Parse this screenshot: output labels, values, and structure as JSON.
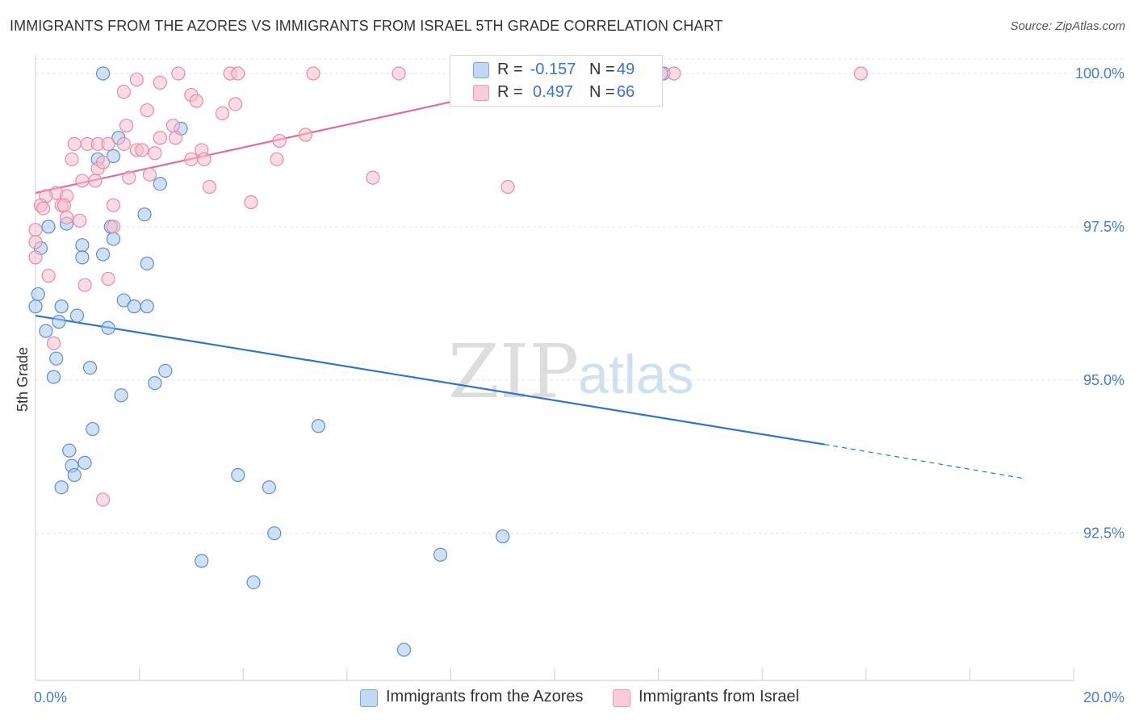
{
  "title": "IMMIGRANTS FROM THE AZORES VS IMMIGRANTS FROM ISRAEL 5TH GRADE CORRELATION CHART",
  "source": "Source: ZipAtlas.com",
  "watermark": {
    "zip": "ZIP",
    "atlas": "atlas"
  },
  "colors": {
    "blue": "#a9c6ee",
    "blue_stroke": "#5b8fd6",
    "blue_line": "#2f74d0",
    "pink": "#f7bfd0",
    "pink_stroke": "#e88aa7",
    "pink_line": "#e46c95",
    "value_text": "#3d73cf",
    "grid": "#e6e6e6"
  },
  "legend": {
    "r_label": "R =",
    "n_label": "N =",
    "rows": [
      {
        "series": "Immigrants from the Azores",
        "r": "-0.157",
        "n": "49",
        "color": "blue"
      },
      {
        "series": "Immigrants from Israel",
        "r": "0.497",
        "n": "66",
        "color": "pink"
      }
    ]
  },
  "chart_data": {
    "type": "scatter",
    "title": "IMMIGRANTS FROM THE AZORES VS IMMIGRANTS FROM ISRAEL 5TH GRADE CORRELATION CHART",
    "xlabel": "",
    "ylabel": "5th Grade",
    "xlim": [
      0,
      20
    ],
    "ylim": [
      90.1,
      100.25
    ],
    "x_tick_labels": [
      "0.0%",
      "20.0%"
    ],
    "y_ticks": [
      92.5,
      95.0,
      97.5,
      100.0
    ],
    "y_tick_labels": [
      "92.5%",
      "95.0%",
      "97.5%",
      "100.0%"
    ],
    "grid": true,
    "legend_position": "top-center",
    "series": [
      {
        "name": "Immigrants from the Azores",
        "color": "blue",
        "r": -0.157,
        "n": 49,
        "trend": {
          "x0": 0.0,
          "y0": 96.05,
          "x1": 15.2,
          "y1": 93.95,
          "dash_to_x": 19.0,
          "dash_to_y": 93.4
        },
        "points": [
          [
            1.3,
            100.0
          ],
          [
            11.0,
            100.0
          ],
          [
            12.1,
            100.0
          ],
          [
            2.8,
            99.1
          ],
          [
            1.6,
            98.95
          ],
          [
            1.2,
            98.6
          ],
          [
            1.5,
            98.65
          ],
          [
            2.4,
            98.2
          ],
          [
            2.1,
            97.7
          ],
          [
            0.6,
            97.55
          ],
          [
            0.25,
            97.5
          ],
          [
            1.45,
            97.5
          ],
          [
            1.5,
            97.3
          ],
          [
            0.9,
            97.2
          ],
          [
            0.1,
            97.15
          ],
          [
            0.9,
            97.0
          ],
          [
            1.3,
            97.05
          ],
          [
            2.15,
            96.9
          ],
          [
            0.05,
            96.4
          ],
          [
            1.7,
            96.3
          ],
          [
            0.0,
            96.2
          ],
          [
            0.5,
            96.2
          ],
          [
            1.9,
            96.2
          ],
          [
            2.15,
            96.2
          ],
          [
            0.8,
            96.05
          ],
          [
            0.45,
            95.95
          ],
          [
            1.4,
            95.85
          ],
          [
            0.2,
            95.8
          ],
          [
            0.4,
            95.35
          ],
          [
            1.05,
            95.2
          ],
          [
            2.5,
            95.15
          ],
          [
            0.35,
            95.05
          ],
          [
            2.3,
            94.95
          ],
          [
            1.65,
            94.75
          ],
          [
            5.45,
            94.25
          ],
          [
            1.1,
            94.2
          ],
          [
            0.65,
            93.85
          ],
          [
            0.7,
            93.6
          ],
          [
            0.95,
            93.65
          ],
          [
            0.75,
            93.45
          ],
          [
            3.9,
            93.45
          ],
          [
            0.5,
            93.25
          ],
          [
            4.5,
            93.25
          ],
          [
            4.6,
            92.5
          ],
          [
            9.0,
            92.45
          ],
          [
            7.8,
            92.15
          ],
          [
            3.2,
            92.05
          ],
          [
            4.2,
            91.7
          ],
          [
            7.1,
            90.6
          ]
        ]
      },
      {
        "name": "Immigrants from Israel",
        "color": "pink",
        "r": 0.497,
        "n": 66,
        "trend": {
          "x0": 0.0,
          "y0": 98.05,
          "x1": 10.5,
          "y1": 100.0
        },
        "points": [
          [
            2.75,
            100.0
          ],
          [
            3.75,
            100.0
          ],
          [
            3.9,
            100.0
          ],
          [
            5.35,
            100.0
          ],
          [
            7.0,
            100.0
          ],
          [
            9.1,
            100.0
          ],
          [
            11.5,
            100.0
          ],
          [
            12.05,
            100.0
          ],
          [
            12.3,
            100.0
          ],
          [
            15.9,
            100.0
          ],
          [
            1.95,
            99.9
          ],
          [
            2.4,
            99.85
          ],
          [
            1.7,
            99.7
          ],
          [
            3.0,
            99.65
          ],
          [
            3.1,
            99.55
          ],
          [
            3.85,
            99.5
          ],
          [
            2.15,
            99.4
          ],
          [
            3.6,
            99.35
          ],
          [
            1.75,
            99.15
          ],
          [
            2.65,
            99.15
          ],
          [
            5.2,
            99.0
          ],
          [
            2.4,
            98.95
          ],
          [
            2.7,
            98.95
          ],
          [
            4.7,
            98.9
          ],
          [
            0.75,
            98.85
          ],
          [
            1.0,
            98.85
          ],
          [
            1.2,
            98.85
          ],
          [
            1.4,
            98.85
          ],
          [
            1.7,
            98.85
          ],
          [
            1.95,
            98.75
          ],
          [
            2.05,
            98.75
          ],
          [
            3.2,
            98.75
          ],
          [
            2.3,
            98.7
          ],
          [
            0.7,
            98.6
          ],
          [
            3.0,
            98.6
          ],
          [
            3.25,
            98.6
          ],
          [
            4.65,
            98.6
          ],
          [
            1.2,
            98.45
          ],
          [
            2.2,
            98.35
          ],
          [
            1.8,
            98.3
          ],
          [
            6.5,
            98.3
          ],
          [
            0.9,
            98.25
          ],
          [
            1.15,
            98.25
          ],
          [
            3.35,
            98.15
          ],
          [
            9.1,
            98.15
          ],
          [
            0.4,
            98.05
          ],
          [
            0.6,
            98.0
          ],
          [
            0.2,
            98.0
          ],
          [
            4.15,
            97.9
          ],
          [
            0.1,
            97.85
          ],
          [
            0.5,
            97.85
          ],
          [
            0.55,
            97.85
          ],
          [
            1.5,
            97.85
          ],
          [
            0.6,
            97.65
          ],
          [
            0.85,
            97.6
          ],
          [
            0.0,
            97.45
          ],
          [
            1.5,
            97.5
          ],
          [
            0.0,
            97.25
          ],
          [
            0.0,
            97.0
          ],
          [
            0.25,
            96.7
          ],
          [
            1.4,
            96.65
          ],
          [
            0.95,
            96.55
          ],
          [
            0.35,
            95.6
          ],
          [
            1.3,
            93.05
          ],
          [
            1.3,
            98.55
          ],
          [
            0.15,
            97.8
          ]
        ]
      }
    ]
  }
}
